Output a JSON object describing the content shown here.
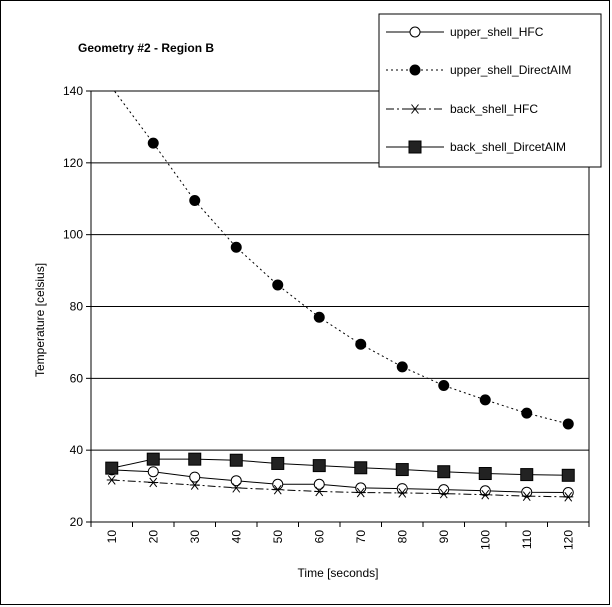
{
  "chart_data": {
    "type": "line",
    "title": "Geometry #2 - Region B",
    "xlabel": "Time [seconds]",
    "ylabel": "Temperature [celsius]",
    "x": [
      10,
      20,
      30,
      40,
      50,
      60,
      70,
      80,
      90,
      100,
      110,
      120
    ],
    "x_ticks": [
      "10",
      "20",
      "30",
      "40",
      "50",
      "60",
      "70",
      "80",
      "90",
      "100",
      "110",
      "120"
    ],
    "ylim": [
      20,
      140
    ],
    "y_ticks": [
      "20",
      "40",
      "60",
      "80",
      "100",
      "120",
      "140"
    ],
    "grid": "horizontal",
    "legend_position": "top-right",
    "series": [
      {
        "name": "upper_shell_HFC",
        "marker": "open-circle",
        "line": "solid",
        "values": [
          34.5,
          34.0,
          32.5,
          31.5,
          30.5,
          30.5,
          29.5,
          29.3,
          29.0,
          28.7,
          28.3,
          28.2
        ]
      },
      {
        "name": "upper_shell_DirectAIM",
        "marker": "filled-circle",
        "line": "dotted",
        "values": [
          141.0,
          125.5,
          109.5,
          96.5,
          86.0,
          77.0,
          69.5,
          63.2,
          58.0,
          54.0,
          50.3,
          47.3
        ]
      },
      {
        "name": "back_shell_HFC",
        "marker": "asterisk",
        "line": "dash-dot",
        "values": [
          31.7,
          31.0,
          30.3,
          29.5,
          29.0,
          28.5,
          28.2,
          28.1,
          27.9,
          27.6,
          27.2,
          27.0
        ]
      },
      {
        "name": "back_shell_DircetAIM",
        "marker": "filled-square",
        "line": "solid",
        "values": [
          35.0,
          37.5,
          37.5,
          37.2,
          36.3,
          35.7,
          35.1,
          34.6,
          34.0,
          33.5,
          33.2,
          33.0
        ]
      }
    ]
  }
}
